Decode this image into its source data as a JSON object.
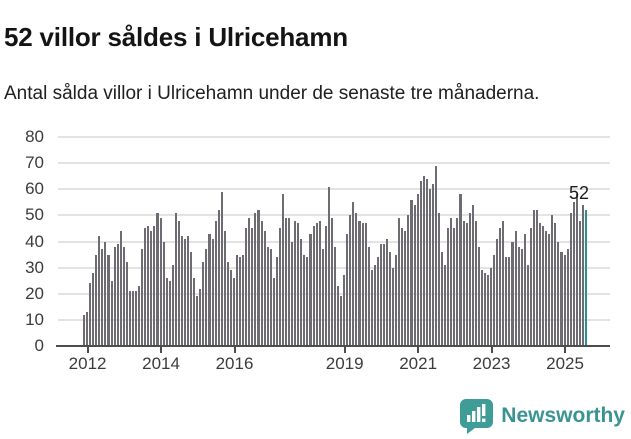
{
  "header": {
    "title": "52 villor såldes i Ulricehamn",
    "subtitle": "Antal sålda villor i Ulricehamn under de senaste tre månaderna."
  },
  "chart_data": {
    "type": "bar",
    "title": "52 villor såldes i Ulricehamn",
    "subtitle": "Antal sålda villor i Ulricehamn under de senaste tre månaderna.",
    "xlabel": "",
    "ylabel": "",
    "ylim": [
      0,
      80
    ],
    "grid": true,
    "y_ticks": [
      0,
      10,
      20,
      30,
      40,
      50,
      60,
      70,
      80
    ],
    "x_tick_labels": [
      "2012",
      "2014",
      "2016",
      "2019",
      "2021",
      "2023",
      "2025"
    ],
    "x_tick_month_index": [
      1,
      25,
      49,
      85,
      109,
      133,
      157
    ],
    "first_bar_period": "2011-12",
    "last_bar_period": "2025-08",
    "values": [
      12,
      13,
      24,
      28,
      35,
      42,
      37,
      40,
      35,
      25,
      38,
      39,
      44,
      38,
      32,
      21,
      21,
      21,
      23,
      37,
      45,
      46,
      44,
      46,
      51,
      49,
      40,
      26,
      25,
      31,
      51,
      48,
      42,
      41,
      42,
      36,
      26,
      19,
      22,
      32,
      37,
      43,
      41,
      48,
      52,
      59,
      44,
      32,
      29,
      26,
      35,
      34,
      35,
      45,
      49,
      45,
      51,
      52,
      48,
      44,
      38,
      37,
      26,
      34,
      45,
      58,
      49,
      49,
      40,
      48,
      47,
      41,
      35,
      34,
      43,
      46,
      47,
      48,
      37,
      46,
      61,
      49,
      38,
      23,
      19,
      27,
      43,
      50,
      55,
      51,
      48,
      47,
      47,
      38,
      29,
      31,
      34,
      39,
      39,
      41,
      36,
      30,
      35,
      49,
      45,
      44,
      50,
      56,
      54,
      58,
      63,
      65,
      64,
      60,
      62,
      69,
      51,
      36,
      31,
      45,
      49,
      45,
      49,
      58,
      48,
      47,
      51,
      54,
      48,
      38,
      29,
      28,
      27,
      30,
      35,
      41,
      45,
      48,
      34,
      34,
      40,
      44,
      38,
      37,
      43,
      31,
      45,
      52,
      52,
      47,
      46,
      44,
      43,
      50,
      47,
      40,
      36,
      35,
      37,
      51,
      55,
      58,
      48,
      54,
      52
    ],
    "highlight_index": 164,
    "annotation": {
      "text": "52"
    },
    "colors": {
      "bar": "#6e6b72",
      "highlight": "#2e8f90",
      "grid": "#e3e3e3",
      "axis": "#4d4d4d",
      "tick_label": "#3c3c3c"
    }
  },
  "footer": {
    "brand": "Newsworthy",
    "brand_color": "#3a9492",
    "icon": "newsworthy-speech-bubble-bar-chart-icon",
    "icon_color": "#3f9c96"
  }
}
